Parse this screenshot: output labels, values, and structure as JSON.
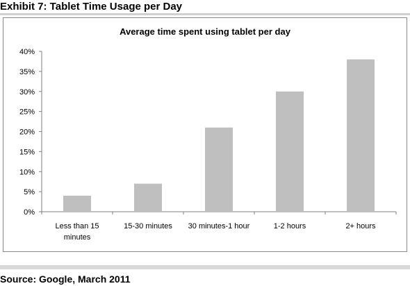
{
  "header": {
    "exhibit_title": "Exhibit 7: Tablet Time Usage per Day"
  },
  "footer": {
    "source": "Source: Google, March 2011"
  },
  "colors": {
    "bar": "#bfbfbf",
    "axis": "#7f7f7f",
    "frame": "#8a8a8a"
  },
  "chart_data": {
    "type": "bar",
    "title": "Average time spent using tablet per day",
    "xlabel": "",
    "ylabel": "",
    "categories": [
      "Less than 15 minutes",
      "15-30 minutes",
      "30 minutes-1 hour",
      "1-2 hours",
      "2+ hours"
    ],
    "category_lines": [
      [
        "Less than 15",
        "minutes"
      ],
      [
        "15-30 minutes"
      ],
      [
        "30 minutes-1  hour"
      ],
      [
        "1-2 hours"
      ],
      [
        "2+ hours"
      ]
    ],
    "values": [
      4,
      7,
      21,
      30,
      38
    ],
    "ylim": [
      0,
      40
    ],
    "yticks": [
      0,
      5,
      10,
      15,
      20,
      25,
      30,
      35,
      40
    ],
    "ytick_labels": [
      "0%",
      "5%",
      "10%",
      "15%",
      "20%",
      "25%",
      "30%",
      "35%",
      "40%"
    ],
    "grid": false,
    "legend": "none"
  }
}
